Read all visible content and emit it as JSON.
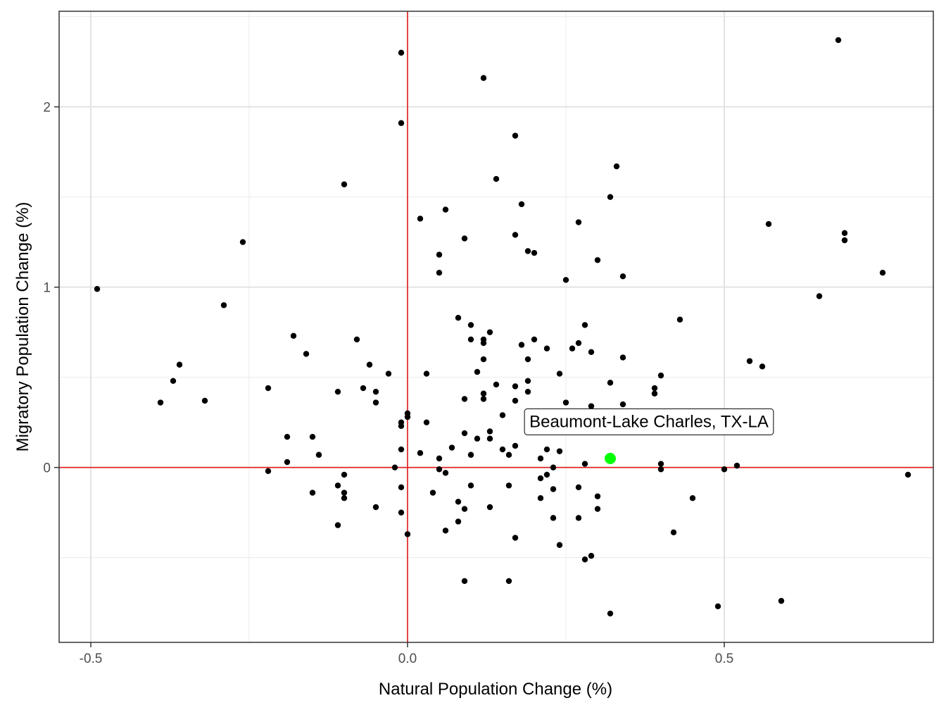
{
  "chart_data": {
    "type": "scatter",
    "title": "",
    "xlabel": "Natural Population Change (%)",
    "ylabel": "Migratory Population Change (%)",
    "xlim": [
      -0.55,
      0.83
    ],
    "ylim": [
      -0.97,
      2.53
    ],
    "x_ticks": [
      -0.5,
      0.0,
      0.5
    ],
    "x_tick_labels": [
      "-0.5",
      "0.0",
      "0.5"
    ],
    "y_ticks": [
      0,
      1,
      2
    ],
    "y_tick_labels": [
      "0",
      "1",
      "2"
    ],
    "grid": true,
    "reference_lines": {
      "x": 0,
      "y": 0,
      "color": "#e41a1c"
    },
    "highlight": {
      "label": "Beaumont-Lake Charles, TX-LA",
      "x": 0.32,
      "y": 0.05,
      "color": "#00ff00"
    },
    "points": [
      [
        -0.49,
        0.99
      ],
      [
        -0.39,
        0.36
      ],
      [
        -0.37,
        0.48
      ],
      [
        -0.36,
        0.57
      ],
      [
        -0.32,
        0.37
      ],
      [
        -0.29,
        0.9
      ],
      [
        -0.26,
        1.25
      ],
      [
        -0.22,
        0.44
      ],
      [
        -0.22,
        -0.02
      ],
      [
        -0.19,
        0.17
      ],
      [
        -0.19,
        0.03
      ],
      [
        -0.18,
        0.73
      ],
      [
        -0.16,
        0.63
      ],
      [
        -0.15,
        0.17
      ],
      [
        -0.15,
        -0.14
      ],
      [
        -0.14,
        0.07
      ],
      [
        -0.11,
        0.42
      ],
      [
        -0.11,
        -0.1
      ],
      [
        -0.11,
        -0.32
      ],
      [
        -0.1,
        1.57
      ],
      [
        -0.1,
        -0.04
      ],
      [
        -0.1,
        -0.14
      ],
      [
        -0.1,
        -0.17
      ],
      [
        -0.08,
        0.71
      ],
      [
        -0.07,
        0.44
      ],
      [
        -0.06,
        0.57
      ],
      [
        -0.05,
        0.42
      ],
      [
        -0.05,
        0.36
      ],
      [
        -0.05,
        -0.22
      ],
      [
        -0.03,
        0.52
      ],
      [
        -0.02,
        0.0
      ],
      [
        -0.01,
        2.3
      ],
      [
        -0.01,
        1.91
      ],
      [
        -0.01,
        0.25
      ],
      [
        -0.01,
        0.23
      ],
      [
        -0.01,
        0.1
      ],
      [
        -0.01,
        -0.11
      ],
      [
        -0.01,
        -0.25
      ],
      [
        0.0,
        0.3
      ],
      [
        0.0,
        0.28
      ],
      [
        0.0,
        -0.37
      ],
      [
        0.02,
        1.38
      ],
      [
        0.02,
        0.08
      ],
      [
        0.03,
        0.52
      ],
      [
        0.03,
        0.25
      ],
      [
        0.04,
        -0.14
      ],
      [
        0.05,
        1.18
      ],
      [
        0.05,
        1.08
      ],
      [
        0.05,
        0.05
      ],
      [
        0.05,
        -0.01
      ],
      [
        0.06,
        1.43
      ],
      [
        0.06,
        -0.03
      ],
      [
        0.06,
        -0.35
      ],
      [
        0.07,
        0.11
      ],
      [
        0.08,
        0.83
      ],
      [
        0.08,
        -0.19
      ],
      [
        0.08,
        -0.3
      ],
      [
        0.09,
        1.27
      ],
      [
        0.09,
        0.38
      ],
      [
        0.09,
        0.19
      ],
      [
        0.09,
        -0.23
      ],
      [
        0.09,
        -0.63
      ],
      [
        0.1,
        0.79
      ],
      [
        0.1,
        0.71
      ],
      [
        0.1,
        0.07
      ],
      [
        0.1,
        -0.1
      ],
      [
        0.11,
        0.53
      ],
      [
        0.11,
        0.16
      ],
      [
        0.12,
        2.16
      ],
      [
        0.12,
        0.71
      ],
      [
        0.12,
        0.69
      ],
      [
        0.12,
        0.6
      ],
      [
        0.12,
        0.41
      ],
      [
        0.12,
        0.38
      ],
      [
        0.13,
        0.75
      ],
      [
        0.13,
        0.2
      ],
      [
        0.13,
        0.16
      ],
      [
        0.13,
        -0.22
      ],
      [
        0.14,
        1.6
      ],
      [
        0.14,
        0.46
      ],
      [
        0.15,
        0.29
      ],
      [
        0.15,
        0.1
      ],
      [
        0.16,
        0.07
      ],
      [
        0.16,
        -0.1
      ],
      [
        0.16,
        -0.63
      ],
      [
        0.17,
        1.84
      ],
      [
        0.17,
        1.29
      ],
      [
        0.17,
        0.45
      ],
      [
        0.17,
        0.37
      ],
      [
        0.17,
        0.12
      ],
      [
        0.17,
        -0.39
      ],
      [
        0.18,
        1.46
      ],
      [
        0.18,
        0.68
      ],
      [
        0.19,
        1.2
      ],
      [
        0.19,
        0.6
      ],
      [
        0.19,
        0.48
      ],
      [
        0.19,
        0.42
      ],
      [
        0.19,
        0.28
      ],
      [
        0.2,
        1.19
      ],
      [
        0.2,
        0.71
      ],
      [
        0.21,
        0.05
      ],
      [
        0.21,
        -0.06
      ],
      [
        0.21,
        -0.17
      ],
      [
        0.22,
        0.66
      ],
      [
        0.22,
        0.31
      ],
      [
        0.22,
        0.1
      ],
      [
        0.22,
        -0.04
      ],
      [
        0.23,
        0.0
      ],
      [
        0.23,
        -0.12
      ],
      [
        0.23,
        -0.28
      ],
      [
        0.24,
        0.52
      ],
      [
        0.24,
        0.29
      ],
      [
        0.24,
        0.09
      ],
      [
        0.24,
        -0.43
      ],
      [
        0.25,
        1.04
      ],
      [
        0.25,
        0.36
      ],
      [
        0.26,
        0.66
      ],
      [
        0.27,
        1.36
      ],
      [
        0.27,
        0.69
      ],
      [
        0.27,
        -0.11
      ],
      [
        0.27,
        -0.28
      ],
      [
        0.28,
        0.79
      ],
      [
        0.28,
        0.02
      ],
      [
        0.28,
        -0.51
      ],
      [
        0.29,
        0.64
      ],
      [
        0.29,
        0.34
      ],
      [
        0.29,
        -0.49
      ],
      [
        0.3,
        1.15
      ],
      [
        0.3,
        -0.16
      ],
      [
        0.3,
        -0.23
      ],
      [
        0.32,
        1.5
      ],
      [
        0.32,
        0.47
      ],
      [
        0.32,
        -0.81
      ],
      [
        0.33,
        1.67
      ],
      [
        0.34,
        1.06
      ],
      [
        0.34,
        0.61
      ],
      [
        0.34,
        0.35
      ],
      [
        0.37,
        0.27
      ],
      [
        0.39,
        0.44
      ],
      [
        0.39,
        0.41
      ],
      [
        0.4,
        0.51
      ],
      [
        0.4,
        0.02
      ],
      [
        0.4,
        -0.01
      ],
      [
        0.42,
        -0.36
      ],
      [
        0.43,
        0.82
      ],
      [
        0.45,
        -0.17
      ],
      [
        0.49,
        -0.77
      ],
      [
        0.5,
        -0.01
      ],
      [
        0.52,
        0.01
      ],
      [
        0.54,
        0.59
      ],
      [
        0.56,
        0.56
      ],
      [
        0.57,
        1.35
      ],
      [
        0.59,
        -0.74
      ],
      [
        0.65,
        0.95
      ],
      [
        0.68,
        2.37
      ],
      [
        0.69,
        1.3
      ],
      [
        0.69,
        1.26
      ],
      [
        0.75,
        1.08
      ],
      [
        0.79,
        -0.04
      ]
    ]
  }
}
